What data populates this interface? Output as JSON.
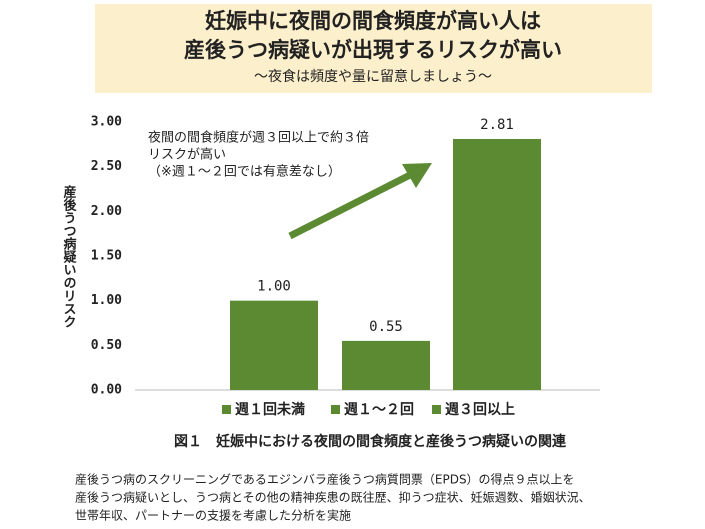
{
  "chart_data": {
    "type": "bar",
    "title": [
      "妊娠中に夜間の間食頻度が高い人は",
      "産後うつ病疑いが出現するリスクが高い"
    ],
    "subtitle": "～夜食は頻度や量に留意しましょう～",
    "y_label": "産後うつ病疑いのリスク",
    "categories": [
      "週１回未満",
      "週１～２回",
      "週３回以上"
    ],
    "values": [
      1.0,
      0.55,
      2.81
    ],
    "value_labels": [
      "1.00",
      "0.55",
      "2.81"
    ],
    "color": "#5b8a33",
    "ylim": [
      0,
      3
    ],
    "yticks": [
      {
        "value": 0,
        "label": "0.00"
      },
      {
        "value": 0.5,
        "label": "0.50"
      },
      {
        "value": 1,
        "label": "1.00"
      },
      {
        "value": 1.5,
        "label": "1.50"
      },
      {
        "value": 2,
        "label": "2.00"
      },
      {
        "value": 2.5,
        "label": "2.50"
      },
      {
        "value": 3,
        "label": "3.00"
      }
    ],
    "grid": false,
    "legend": "bottom",
    "annotations": [
      "夜間の間食頻度が週３回以上で約３倍",
      "リスクが高い",
      "（※週１～２回では有意差なし）"
    ],
    "caption": "図１　妊娠中における夜間の間食頻度と産後うつ病疑いの関連",
    "note": [
      "産後うつ病のスクリーニングであるエジンバラ産後うつ病質問票（EPDS）の得点９点以上を",
      "産後うつ病疑いとし、うつ病とその他の精神疾患の既往歴、抑うつ症状、妊娠週数、婚姻状況、",
      "世帯年収、パートナーの支援を考慮した分析を実施"
    ]
  }
}
